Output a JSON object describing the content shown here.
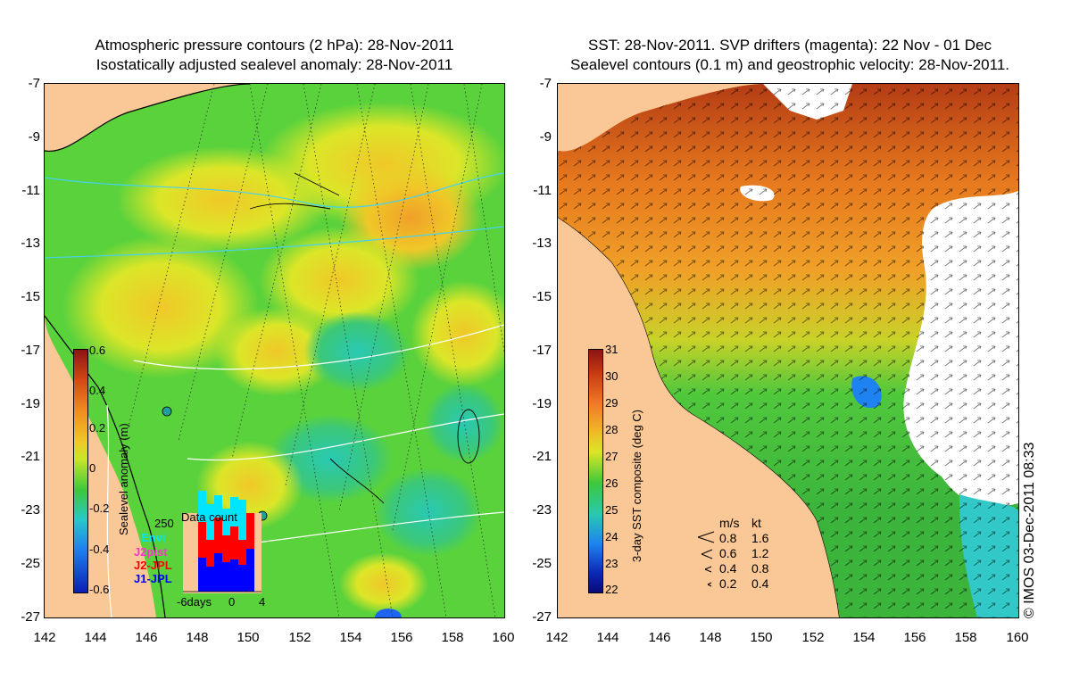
{
  "left_panel": {
    "title_line1": "Atmospheric pressure contours (2 hPa): 28-Nov-2011",
    "title_line2": "Isostatically adjusted sealevel anomaly: 28-Nov-2011",
    "colorbar_title": "Sealevel anomaly (m)",
    "colorbar_ticks": [
      "0.6",
      "0.4",
      "0.2",
      "0",
      "-0.2",
      "-0.4",
      "-0.6"
    ],
    "data_count": {
      "title": "Data count",
      "ymax_label": "250",
      "xlabels": [
        "-6days",
        "0",
        "4"
      ],
      "legend": [
        {
          "label": "Envi",
          "color": "#00e5ff"
        },
        {
          "label": "J2pist",
          "color": "#ff33cc"
        },
        {
          "label": "J2-JPL",
          "color": "#ff0000"
        },
        {
          "label": "J1-JPL",
          "color": "#0000ff"
        }
      ]
    }
  },
  "right_panel": {
    "title_line1": "SST: 28-Nov-2011. SVP drifters (magenta): 22 Nov - 01 Dec",
    "title_line2": "Sealevel contours (0.1 m) and geostrophic velocity: 28-Nov-2011.",
    "colorbar_title": "3-day SST composite (deg C)",
    "colorbar_ticks": [
      "31",
      "30",
      "29",
      "28",
      "27",
      "26",
      "25",
      "24",
      "23",
      "22"
    ],
    "speed_legend": {
      "header_ms": "m/s",
      "header_kt": "kt",
      "rows": [
        {
          "ms": "0.8",
          "kt": "1.6"
        },
        {
          "ms": "0.6",
          "kt": "1.2"
        },
        {
          "ms": "0.4",
          "kt": "0.8"
        },
        {
          "ms": "0.2",
          "kt": "0.4"
        }
      ]
    },
    "copyright": "© IMOS 03-Dec-2011 08:33"
  },
  "axes": {
    "y_ticks": [
      "-7",
      "-9",
      "-11",
      "-13",
      "-15",
      "-17",
      "-19",
      "-21",
      "-23",
      "-25",
      "-27"
    ],
    "x_ticks": [
      "142",
      "144",
      "146",
      "148",
      "150",
      "152",
      "154",
      "156",
      "158",
      "160"
    ]
  },
  "colors": {
    "land": "#fac896",
    "sla_green": "#3cc83c",
    "sla_yellow": "#d2e628",
    "sla_orange": "#f0b428",
    "sst_orange": "#e68228",
    "sst_green": "#3cb43c",
    "sst_cyan": "#32c8c8",
    "no_data": "#ffffff"
  }
}
